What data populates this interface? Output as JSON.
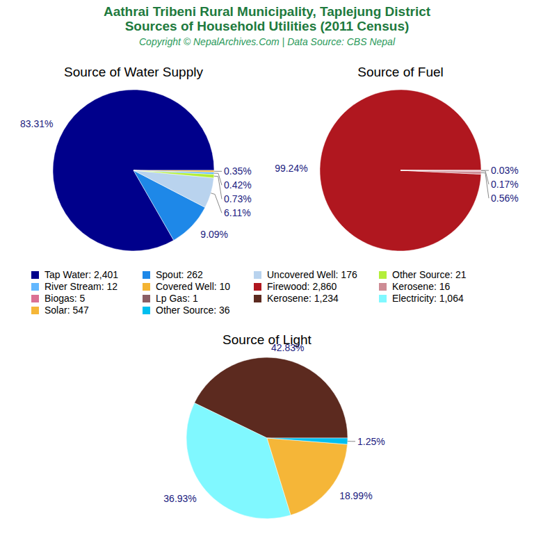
{
  "title": [
    "Aathrai Tribeni Rural Municipality, Taplejung District",
    "Sources of Household Utilities (2011 Census)"
  ],
  "subtitle": "Copyright © NepalArchives.Com | Data Source: CBS Nepal",
  "chart_data": [
    {
      "type": "pie",
      "title": "Source of Water Supply",
      "categories": [
        "Tap Water",
        "Spout",
        "Uncovered Well",
        "Other Source",
        "River Stream",
        "Covered Well"
      ],
      "values": [
        83.31,
        9.09,
        6.11,
        0.73,
        0.42,
        0.35
      ],
      "value_labels": [
        "83.31%",
        "9.09%",
        "6.11%",
        "0.73%",
        "0.42%",
        "0.35%"
      ],
      "counts": [
        2401,
        262,
        176,
        21,
        12,
        10
      ],
      "count_labels": [
        "2,401",
        "262",
        "176",
        "21",
        "12",
        "10"
      ],
      "colors": [
        "#00008b",
        "#1e88e8",
        "#b9d3ee",
        "#b3ee3a",
        "#63b8ff",
        "#f4b432"
      ],
      "data_labels": true
    },
    {
      "type": "pie",
      "title": "Source of Fuel",
      "categories": [
        "Firewood",
        "Kerosene",
        "Biogas",
        "Lp Gas"
      ],
      "values": [
        99.24,
        0.56,
        0.17,
        0.03
      ],
      "value_labels": [
        "99.24%",
        "0.56%",
        "0.17%",
        "0.03%"
      ],
      "counts": [
        2860,
        16,
        5,
        1
      ],
      "count_labels": [
        "2,860",
        "16",
        "5",
        "1"
      ],
      "colors": [
        "#b0171f",
        "#cd8c95",
        "#db7093",
        "#8b5f65"
      ],
      "data_labels": true
    },
    {
      "type": "pie",
      "title": "Source of Light",
      "categories": [
        "Kerosene",
        "Electricity",
        "Solar",
        "Other Source"
      ],
      "values": [
        42.83,
        36.93,
        18.99,
        1.25
      ],
      "value_labels": [
        "42.83%",
        "36.93%",
        "18.99%",
        "1.25%"
      ],
      "counts": [
        1234,
        1064,
        547,
        36
      ],
      "count_labels": [
        "1,234",
        "1,064",
        "547",
        "36"
      ],
      "colors": [
        "#5c2a1f",
        "#80f8ff",
        "#f5b638",
        "#00bfef"
      ],
      "data_labels": true
    }
  ]
}
